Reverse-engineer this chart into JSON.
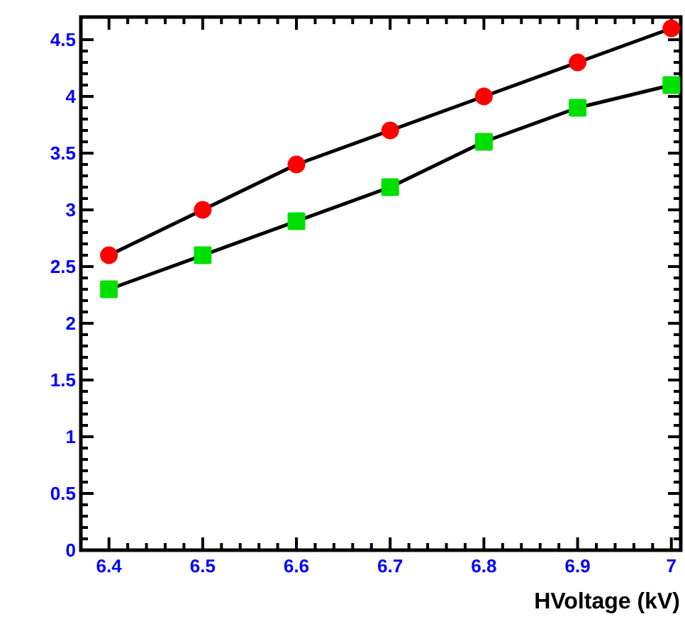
{
  "chart_data": {
    "type": "line",
    "xlabel": "HVoltage (kV)",
    "x": [
      6.4,
      6.5,
      6.6,
      6.7,
      6.8,
      6.9,
      7.0
    ],
    "series": [
      {
        "color": "#ff0000",
        "marker": "circle",
        "values": [
          2.6,
          3.0,
          3.4,
          3.7,
          4.0,
          4.3,
          4.6
        ]
      },
      {
        "color": "#00e000",
        "marker": "square",
        "values": [
          2.3,
          2.6,
          2.9,
          3.2,
          3.6,
          3.9,
          4.1
        ]
      }
    ],
    "xlim": [
      6.37,
      7.01
    ],
    "ylim": [
      0,
      4.7
    ],
    "xticks": [
      6.4,
      6.5,
      6.6,
      6.7,
      6.8,
      6.9,
      7
    ],
    "yticks": [
      0,
      0.5,
      1,
      1.5,
      2,
      2.5,
      3,
      3.5,
      4,
      4.5
    ],
    "grid": false,
    "line_style": "solid"
  }
}
